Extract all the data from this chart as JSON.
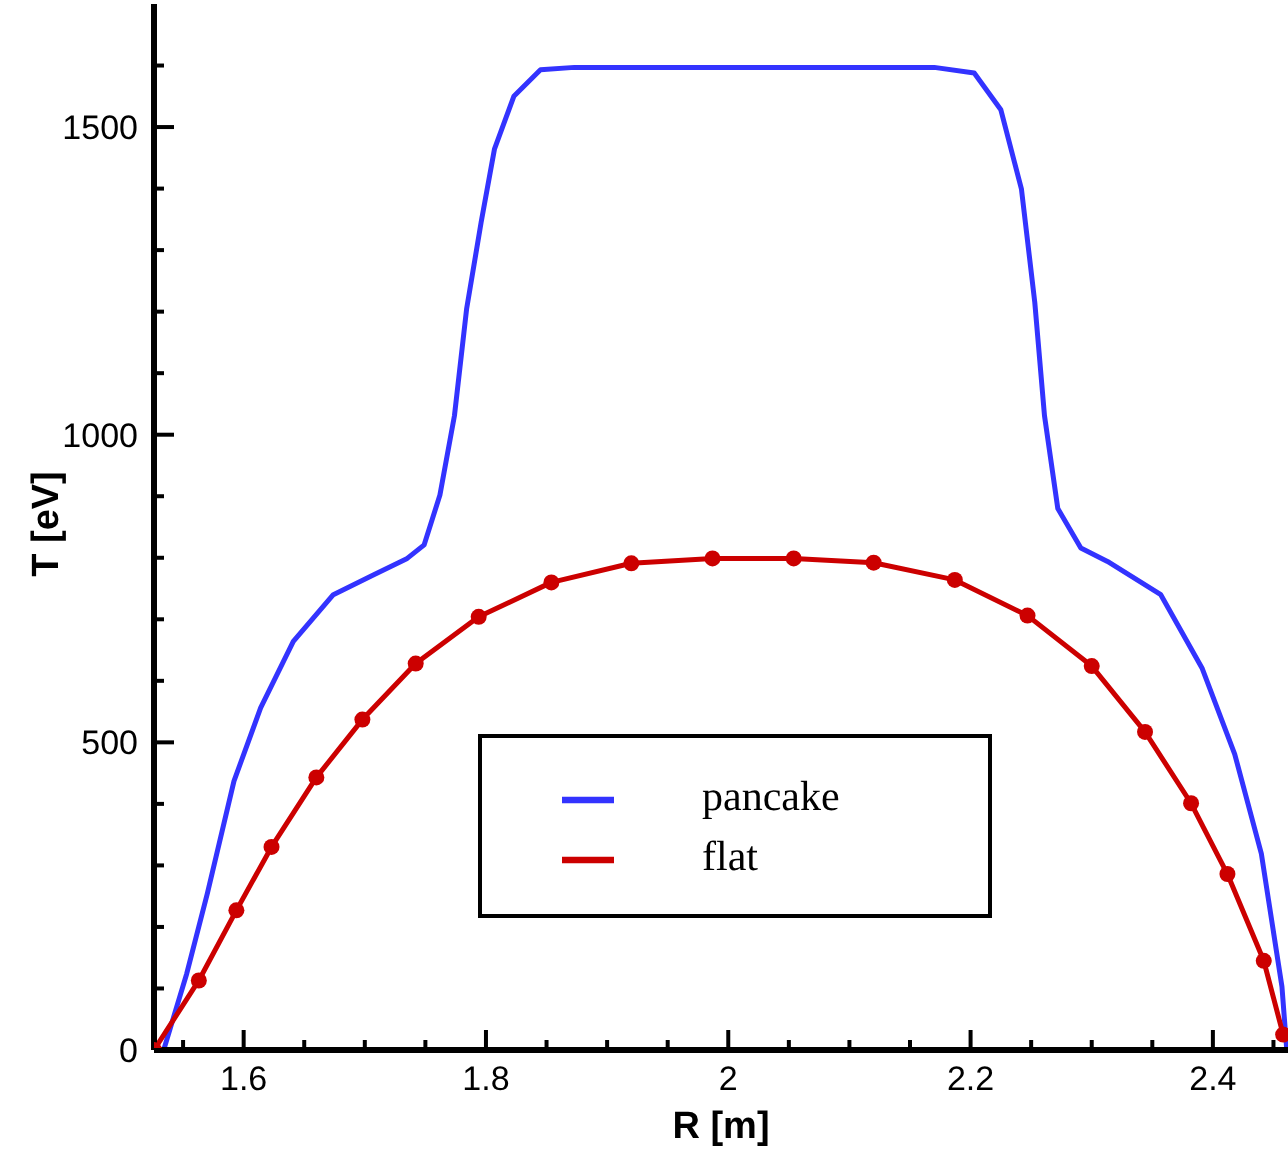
{
  "chart_data": {
    "type": "line",
    "xlabel": "R [m]",
    "ylabel": "T [eV]",
    "xlim": [
      1.526,
      2.462
    ],
    "ylim": [
      0,
      1700
    ],
    "xticks": [
      {
        "value": 1.55,
        "label": null
      },
      1.6,
      {
        "value": 1.65,
        "label": null
      },
      {
        "value": 1.7,
        "label": null
      },
      {
        "value": 1.75,
        "label": null
      },
      1.8,
      {
        "value": 1.85,
        "label": null
      },
      {
        "value": 1.9,
        "label": null
      },
      {
        "value": 1.95,
        "label": null
      },
      2,
      {
        "value": 2.05,
        "label": null
      },
      {
        "value": 2.1,
        "label": null
      },
      {
        "value": 2.15,
        "label": null
      },
      2.2,
      {
        "value": 2.25,
        "label": null
      },
      {
        "value": 2.3,
        "label": null
      },
      {
        "value": 2.35,
        "label": null
      },
      2.4,
      {
        "value": 2.45,
        "label": null
      }
    ],
    "yticks": [
      0,
      {
        "value": 100,
        "label": null
      },
      {
        "value": 200,
        "label": null
      },
      {
        "value": 300,
        "label": null
      },
      {
        "value": 400,
        "label": null
      },
      500,
      {
        "value": 600,
        "label": null
      },
      {
        "value": 700,
        "label": null
      },
      {
        "value": 800,
        "label": null
      },
      {
        "value": 900,
        "label": null
      },
      1000,
      {
        "value": 1100,
        "label": null
      },
      {
        "value": 1200,
        "label": null
      },
      {
        "value": 1300,
        "label": null
      },
      {
        "value": 1400,
        "label": null
      },
      1500,
      {
        "value": 1600,
        "label": null
      }
    ],
    "legend": "bottom",
    "line_style": "solid",
    "series": [
      {
        "name": "pancake",
        "color": "#3333ff",
        "marker": "none",
        "x": [
          1.534,
          1.553,
          1.57,
          1.592,
          1.614,
          1.641,
          1.674,
          1.707,
          1.735,
          1.749,
          1.762,
          1.774,
          1.784,
          1.796,
          1.807,
          1.823,
          1.845,
          1.873,
          2.17,
          2.203,
          2.225,
          2.242,
          2.253,
          2.261,
          2.272,
          2.291,
          2.313,
          2.357,
          2.391,
          2.418,
          2.44,
          2.457,
          2.461
        ],
        "values": [
          0,
          124,
          254,
          437,
          556,
          664,
          740,
          772,
          799,
          821,
          902,
          1031,
          1204,
          1345,
          1464,
          1550,
          1593,
          1597,
          1597,
          1588,
          1528,
          1399,
          1215,
          1031,
          880,
          816,
          794,
          740,
          621,
          481,
          319,
          103,
          0
        ]
      },
      {
        "name": "flat",
        "color": "#cc0000",
        "marker": "circle",
        "x": [
          1.526,
          1.563,
          1.594,
          1.623,
          1.66,
          1.698,
          1.742,
          1.794,
          1.854,
          1.92,
          1.987,
          2.054,
          2.12,
          2.187,
          2.247,
          2.3,
          2.344,
          2.382,
          2.412,
          2.442,
          2.458
        ],
        "values": [
          0,
          113,
          227,
          330,
          443,
          537,
          628,
          704,
          760,
          791,
          799,
          799,
          792,
          764,
          706,
          624,
          517,
          401,
          286,
          145,
          25
        ]
      }
    ]
  }
}
